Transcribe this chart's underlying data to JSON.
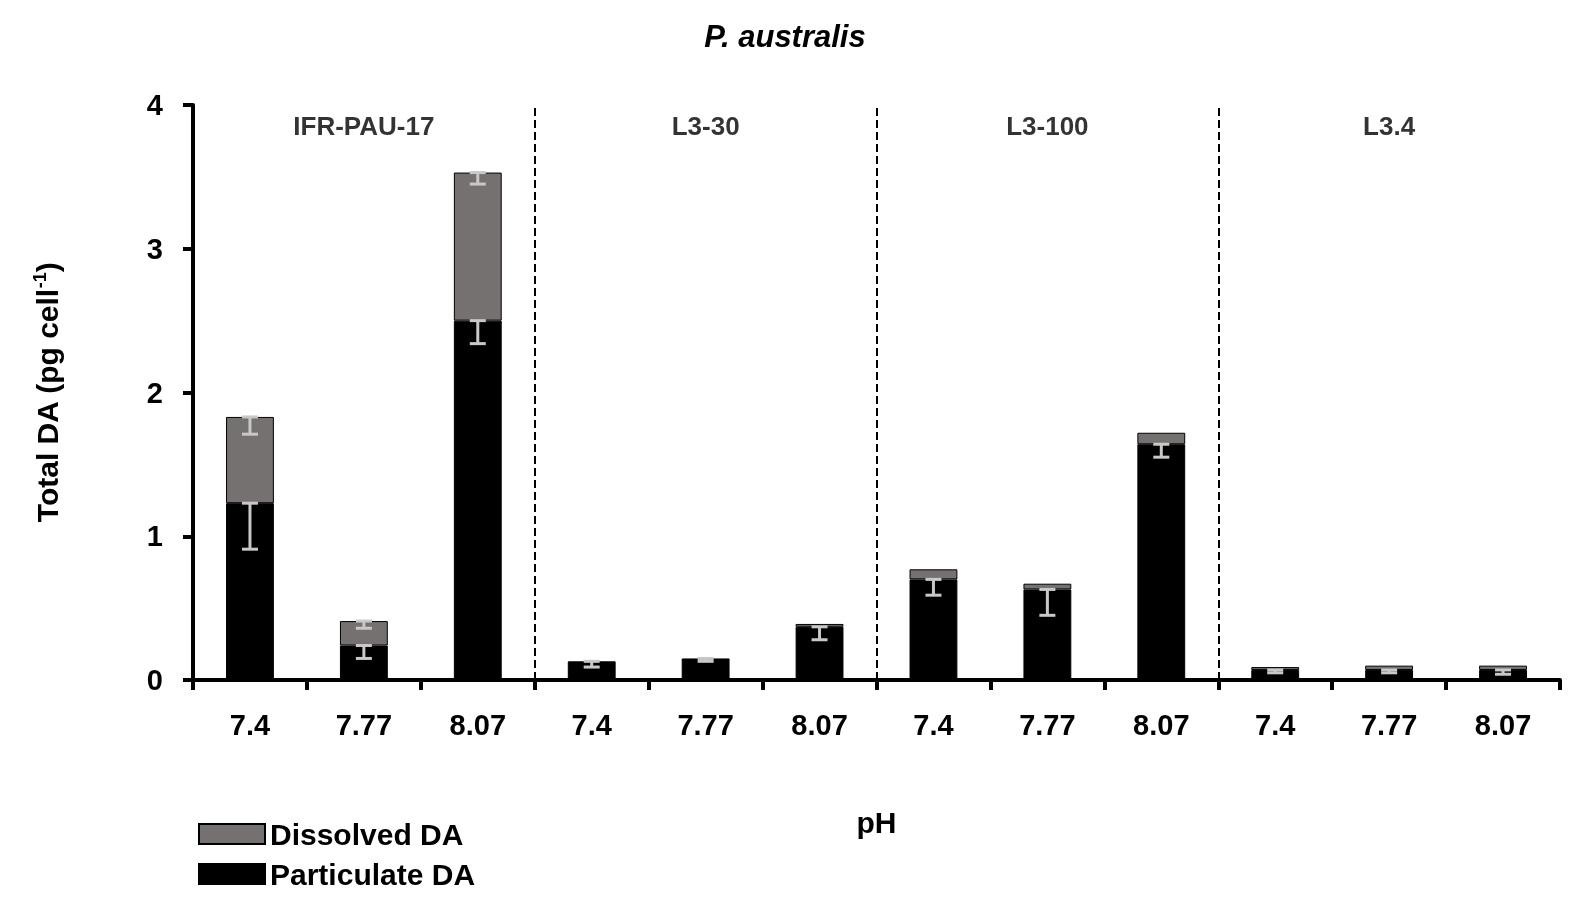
{
  "chart_data": {
    "type": "bar",
    "title": "P. australis",
    "xlabel": "pH",
    "ylabel": "Total DA (pg cell$^{-1}$)",
    "categories": [
      "7.4",
      "7.77",
      "8.07",
      "7.4",
      "7.77",
      "8.07",
      "7.4",
      "7.77",
      "8.07",
      "7.4",
      "7.77",
      "8.07"
    ],
    "stacked": true,
    "series": [
      {
        "name": "Particulate DA",
        "color": "#000000",
        "values": [
          1.23,
          0.24,
          2.5,
          0.13,
          0.15,
          0.37,
          0.7,
          0.63,
          1.64,
          0.07,
          0.07,
          0.07
        ],
        "errors": [
          [
            0.91,
            1.23
          ],
          [
            0.15,
            0.24
          ],
          [
            2.34,
            2.5
          ],
          [
            0.09,
            0.13
          ],
          [
            0.13,
            0.15
          ],
          [
            0.28,
            0.37
          ],
          [
            0.59,
            0.7
          ],
          [
            0.45,
            0.63
          ],
          [
            1.55,
            1.64
          ],
          [
            0.05,
            0.07
          ],
          [
            0.05,
            0.07
          ],
          [
            0.04,
            0.07
          ]
        ]
      },
      {
        "name": "Dissolved DA",
        "color": "#767171",
        "values": [
          0.6,
          0.17,
          1.03,
          null,
          null,
          0.02,
          0.07,
          0.04,
          0.08,
          0.02,
          0.03,
          0.03
        ],
        "errors": [
          [
            1.71,
            1.83
          ],
          [
            0.36,
            0.41
          ],
          [
            3.45,
            3.53
          ],
          null,
          null,
          null,
          null,
          null,
          null,
          null,
          null,
          null
        ]
      }
    ],
    "ylim": [
      0,
      4
    ],
    "yticks": [
      0,
      1,
      2,
      3,
      4
    ],
    "grid": false,
    "legend": "bottom left",
    "annotations": [
      "IFR-PAU-17",
      "L3-30",
      "L3-100",
      "L3.4"
    ]
  }
}
